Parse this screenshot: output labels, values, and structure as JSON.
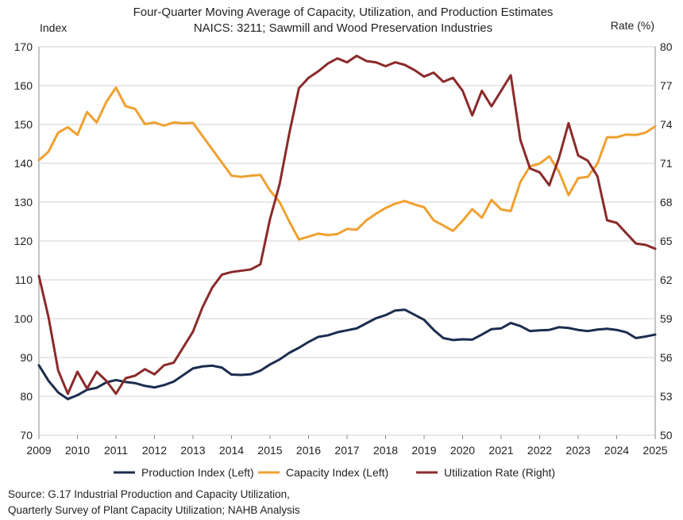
{
  "chart_data": {
    "type": "line",
    "title": "Four-Quarter Moving Average of Capacity, Utilization, and Production Estimates",
    "subtitle": "NAICS: 3211; Sawmill and Wood Preservation Industries",
    "ylabel_left": "Index",
    "ylabel_right": "Rate (%)",
    "x_ticks": [
      "2009",
      "2010",
      "2011",
      "2012",
      "2013",
      "2014",
      "2015",
      "2016",
      "2017",
      "2018",
      "2019",
      "2020",
      "2021",
      "2022",
      "2023",
      "2024",
      "2025"
    ],
    "y_left_ticks": [
      "70",
      "80",
      "90",
      "100",
      "110",
      "120",
      "130",
      "140",
      "150",
      "160",
      "170"
    ],
    "y_right_ticks": [
      "50",
      "53",
      "56",
      "59",
      "62",
      "65",
      "68",
      "71",
      "74",
      "77",
      "80"
    ],
    "xlim": [
      2009,
      2025
    ],
    "ylim_left": [
      70,
      170
    ],
    "ylim_right": [
      50,
      80
    ],
    "grid": "horizontal",
    "legend_position": "bottom",
    "x": [
      2009.0,
      2009.25,
      2009.5,
      2009.75,
      2010.0,
      2010.25,
      2010.5,
      2010.75,
      2011.0,
      2011.25,
      2011.5,
      2011.75,
      2012.0,
      2012.25,
      2012.5,
      2012.75,
      2013.0,
      2013.25,
      2013.5,
      2013.75,
      2014.0,
      2014.25,
      2014.5,
      2014.75,
      2015.0,
      2015.25,
      2015.5,
      2015.75,
      2016.0,
      2016.25,
      2016.5,
      2016.75,
      2017.0,
      2017.25,
      2017.5,
      2017.75,
      2018.0,
      2018.25,
      2018.5,
      2018.75,
      2019.0,
      2019.25,
      2019.5,
      2019.75,
      2020.0,
      2020.25,
      2020.5,
      2020.75,
      2021.0,
      2021.25,
      2021.5,
      2021.75,
      2022.0,
      2022.25,
      2022.5,
      2022.75,
      2023.0,
      2023.25,
      2023.5,
      2023.75,
      2024.0,
      2024.25,
      2024.5,
      2024.75,
      2025.0
    ],
    "series": [
      {
        "name": "Production Index (Left)",
        "axis": "left",
        "color": "#1b2d4f",
        "values": [
          88.0,
          84.0,
          81.0,
          79.3,
          80.3,
          81.7,
          82.2,
          83.6,
          84.2,
          83.7,
          83.4,
          82.7,
          82.3,
          82.9,
          83.8,
          85.5,
          87.2,
          87.7,
          87.9,
          87.4,
          85.6,
          85.5,
          85.7,
          86.6,
          88.2,
          89.5,
          91.2,
          92.5,
          94.0,
          95.3,
          95.7,
          96.5,
          97.0,
          97.5,
          98.8,
          100.1,
          100.9,
          102.1,
          102.3,
          101.0,
          99.7,
          97.1,
          95.0,
          94.5,
          94.7,
          94.6,
          95.9,
          97.3,
          97.5,
          98.9,
          98.1,
          96.8,
          97.0,
          97.1,
          97.8,
          97.6,
          97.1,
          96.8,
          97.2,
          97.4,
          97.1,
          96.5,
          95.0,
          95.4,
          95.9
        ]
      },
      {
        "name": "Capacity Index (Left)",
        "axis": "left",
        "color": "#f0a030",
        "values": [
          140.8,
          143.0,
          147.9,
          149.3,
          147.3,
          153.2,
          150.5,
          155.8,
          159.5,
          154.7,
          154.0,
          150.1,
          150.5,
          149.7,
          150.5,
          150.3,
          150.4,
          147.0,
          143.6,
          140.2,
          136.8,
          136.5,
          136.8,
          137.0,
          133.0,
          130.0,
          125.0,
          120.4,
          121.1,
          121.9,
          121.5,
          121.8,
          123.1,
          122.9,
          125.3,
          127.0,
          128.5,
          129.6,
          130.3,
          129.4,
          128.7,
          125.3,
          124.0,
          122.6,
          125.2,
          128.2,
          126.0,
          130.6,
          128.1,
          127.7,
          135.2,
          139.2,
          139.9,
          141.8,
          137.9,
          131.8,
          136.2,
          136.5,
          139.9,
          146.7,
          146.7,
          147.4,
          147.3,
          147.9,
          149.5
        ]
      },
      {
        "name": "Utilization Rate (Right)",
        "axis": "right",
        "color": "#8b2a2a",
        "values": [
          62.3,
          59.1,
          55.0,
          53.2,
          54.9,
          53.6,
          54.9,
          54.2,
          53.2,
          54.4,
          54.6,
          55.1,
          54.7,
          55.4,
          55.6,
          56.8,
          58.0,
          59.9,
          61.4,
          62.4,
          62.6,
          62.7,
          62.8,
          63.2,
          66.7,
          69.4,
          73.3,
          76.8,
          77.6,
          78.1,
          78.7,
          79.1,
          78.8,
          79.3,
          78.9,
          78.8,
          78.5,
          78.8,
          78.6,
          78.2,
          77.7,
          78.0,
          77.3,
          77.6,
          76.6,
          74.7,
          76.6,
          75.4,
          76.6,
          77.8,
          72.8,
          70.6,
          70.3,
          69.3,
          71.4,
          74.1,
          71.6,
          71.2,
          70.0,
          66.6,
          66.4,
          65.6,
          64.8,
          64.7,
          64.4
        ]
      }
    ]
  },
  "source_lines": [
    "Source: G.17 Industrial Production and Capacity Utilization,",
    "Quarterly Survey of Plant Capacity Utilization; NAHB Analysis"
  ]
}
